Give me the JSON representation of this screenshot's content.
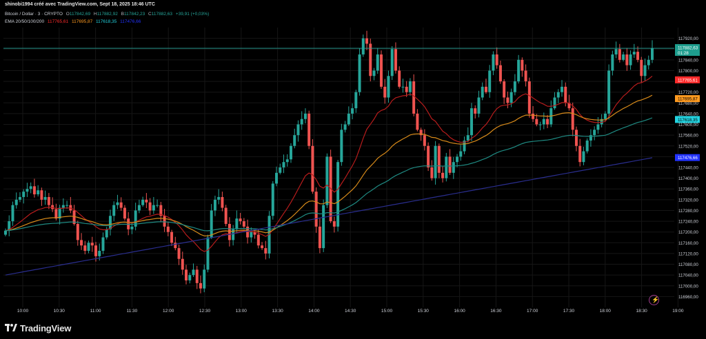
{
  "header": {
    "byline": "shinobi1994 créé avec TradingView.com, Sept 18, 2025 18:46 UTC",
    "symbol": "Bitcoin / Dollar · 3 · CRYPTO",
    "o_label": "O",
    "o_value": "117842,69",
    "h_label": "H",
    "h_value": "117882,92",
    "b_label": "B",
    "b_value": "117842,23",
    "c_label": "C",
    "c_value": "117882,63",
    "change": "+39,91 (+0,03%)",
    "ema_label": "EMA 20/50/100/200",
    "ema20": "117765,61",
    "ema50": "117695,87",
    "ema100": "117618,35",
    "ema200": "117476,66"
  },
  "footer": {
    "brand": "TradingView"
  },
  "colors": {
    "up": "#26a69a",
    "down": "#ef5350",
    "ema20": "#b71c1c",
    "ema50": "#d98b1a",
    "ema100": "#1f8b83",
    "ema200": "#2a2e8f",
    "ema20_label": "#ff2b2b",
    "ema50_label": "#ff9a1f",
    "ema100_label": "#23d3e0",
    "ema200_label": "#2233ff",
    "grid": "#161616",
    "text": "#d1d4dc",
    "price_bg": "#1e9e8e"
  },
  "icons": {
    "logo": "tradingview-logo-icon",
    "alert": "lightning-icon"
  },
  "chart_data": {
    "type": "candlestick",
    "ylim": [
      116920,
      117960
    ],
    "y_ticks": [
      116960,
      117000,
      117040,
      117080,
      117120,
      117160,
      117200,
      117240,
      117280,
      117320,
      117360,
      117400,
      117440,
      117480,
      117520,
      117560,
      117600,
      117640,
      117680,
      117720,
      117760,
      117800,
      117840,
      117880,
      117920
    ],
    "y_tick_labels": [
      "116960,00",
      "117000,00",
      "117040,00",
      "117080,00",
      "117120,00",
      "117160,00",
      "117200,00",
      "117240,00",
      "117280,00",
      "117320,00",
      "117360,00",
      "117400,00",
      "117440,00",
      "117480,00",
      "117520,00",
      "117560,00",
      "117600,00",
      "117640,00",
      "117680,00",
      "117720,00",
      "117760,00",
      "117800,00",
      "117840,00",
      "117880,00",
      "117920,00"
    ],
    "x_ticks": [
      "10:00",
      "10:30",
      "11:00",
      "11:30",
      "12:00",
      "12:30",
      "13:00",
      "13:30",
      "14:00",
      "14:30",
      "15:00",
      "15:30",
      "16:00",
      "16:30",
      "17:00",
      "17:30",
      "18:00",
      "18:30",
      "19:00"
    ],
    "candles_start_time": "09:48",
    "candle_interval_min": 3,
    "close": [
      117205,
      117240,
      117300,
      117320,
      117330,
      117350,
      117360,
      117370,
      117340,
      117355,
      117320,
      117330,
      117300,
      117285,
      117250,
      117290,
      117300,
      117300,
      117280,
      117230,
      117170,
      117150,
      117130,
      117160,
      117150,
      117110,
      117130,
      117180,
      117210,
      117260,
      117300,
      117310,
      117290,
      117250,
      117210,
      117220,
      117280,
      117300,
      117320,
      117310,
      117280,
      117300,
      117300,
      117260,
      117220,
      117200,
      117160,
      117140,
      117100,
      117060,
      117020,
      117040,
      117060,
      117010,
      116990,
      117060,
      117180,
      117280,
      117320,
      117330,
      117290,
      117230,
      117170,
      117210,
      117250,
      117240,
      117220,
      117180,
      117200,
      117190,
      117150,
      117140,
      117120,
      117260,
      117380,
      117420,
      117440,
      117460,
      117470,
      117520,
      117560,
      117600,
      117620,
      117640,
      117520,
      117350,
      117220,
      117140,
      117300,
      117480,
      117240,
      117220,
      117460,
      117580,
      117600,
      117640,
      117660,
      117720,
      117860,
      117920,
      117900,
      117780,
      117800,
      117860,
      117740,
      117700,
      117780,
      117880,
      117800,
      117740,
      117740,
      117720,
      117760,
      117640,
      117580,
      117560,
      117520,
      117440,
      117400,
      117520,
      117420,
      117400,
      117480,
      117420,
      117460,
      117480,
      117500,
      117540,
      117560,
      117660,
      117640,
      117700,
      117740,
      117720,
      117800,
      117860,
      117820,
      117760,
      117700,
      117680,
      117720,
      117760,
      117840,
      117800,
      117760,
      117640,
      117620,
      117600,
      117600,
      117620,
      117600,
      117660,
      117700,
      117720,
      117740,
      117680,
      117660,
      117580,
      117520,
      117460,
      117500,
      117540,
      117560,
      117580,
      117600,
      117620,
      117640,
      117800,
      117860,
      117880,
      117840,
      117860,
      117820,
      117860,
      117870,
      117840,
      117780,
      117820,
      117840,
      117883
    ],
    "trend": "Rises from about 117205 to a high near 117930 with a pullback to about 117380 around 15:15 and again to 117470 around 17:35",
    "series_labels": [
      "EMA 20",
      "EMA 50",
      "EMA 100",
      "EMA 200"
    ],
    "last_price": "117882,63",
    "countdown": "01:28",
    "ema_last": [
      "117765,61",
      "117695,87",
      "117618,35",
      "117476,66"
    ]
  }
}
